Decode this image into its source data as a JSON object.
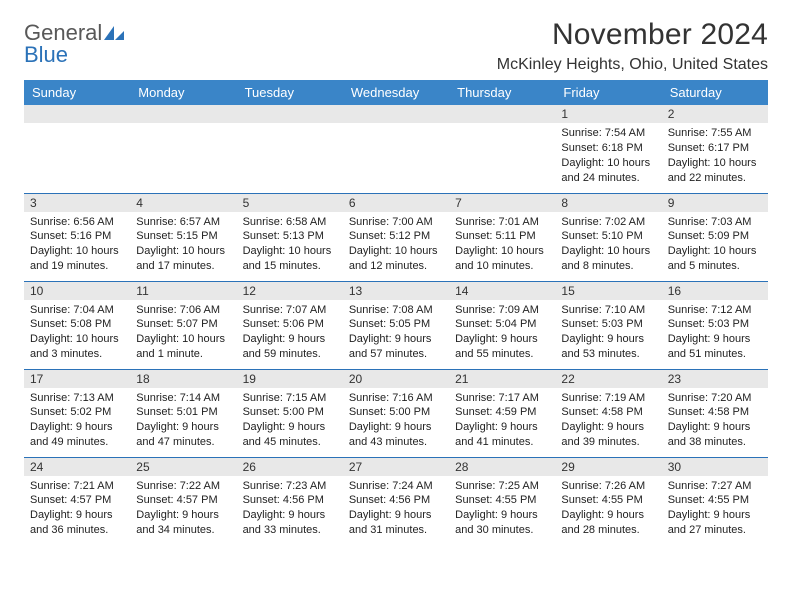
{
  "brand": {
    "name_a": "General",
    "name_b": "Blue"
  },
  "title": "November 2024",
  "subtitle": "McKinley Heights, Ohio, United States",
  "columns": [
    "Sunday",
    "Monday",
    "Tuesday",
    "Wednesday",
    "Thursday",
    "Friday",
    "Saturday"
  ],
  "colors": {
    "header_bg": "#3a85c8",
    "header_fg": "#ffffff",
    "strip_bg": "#e8e8e8",
    "divider": "#2b72b8",
    "logo_grey": "#585858",
    "logo_blue": "#2b72b8"
  },
  "weeks": [
    [
      {
        "n": "",
        "l1": "",
        "l2": "",
        "l3": "",
        "l4": ""
      },
      {
        "n": "",
        "l1": "",
        "l2": "",
        "l3": "",
        "l4": ""
      },
      {
        "n": "",
        "l1": "",
        "l2": "",
        "l3": "",
        "l4": ""
      },
      {
        "n": "",
        "l1": "",
        "l2": "",
        "l3": "",
        "l4": ""
      },
      {
        "n": "",
        "l1": "",
        "l2": "",
        "l3": "",
        "l4": ""
      },
      {
        "n": "1",
        "l1": "Sunrise: 7:54 AM",
        "l2": "Sunset: 6:18 PM",
        "l3": "Daylight: 10 hours",
        "l4": "and 24 minutes."
      },
      {
        "n": "2",
        "l1": "Sunrise: 7:55 AM",
        "l2": "Sunset: 6:17 PM",
        "l3": "Daylight: 10 hours",
        "l4": "and 22 minutes."
      }
    ],
    [
      {
        "n": "3",
        "l1": "Sunrise: 6:56 AM",
        "l2": "Sunset: 5:16 PM",
        "l3": "Daylight: 10 hours",
        "l4": "and 19 minutes."
      },
      {
        "n": "4",
        "l1": "Sunrise: 6:57 AM",
        "l2": "Sunset: 5:15 PM",
        "l3": "Daylight: 10 hours",
        "l4": "and 17 minutes."
      },
      {
        "n": "5",
        "l1": "Sunrise: 6:58 AM",
        "l2": "Sunset: 5:13 PM",
        "l3": "Daylight: 10 hours",
        "l4": "and 15 minutes."
      },
      {
        "n": "6",
        "l1": "Sunrise: 7:00 AM",
        "l2": "Sunset: 5:12 PM",
        "l3": "Daylight: 10 hours",
        "l4": "and 12 minutes."
      },
      {
        "n": "7",
        "l1": "Sunrise: 7:01 AM",
        "l2": "Sunset: 5:11 PM",
        "l3": "Daylight: 10 hours",
        "l4": "and 10 minutes."
      },
      {
        "n": "8",
        "l1": "Sunrise: 7:02 AM",
        "l2": "Sunset: 5:10 PM",
        "l3": "Daylight: 10 hours",
        "l4": "and 8 minutes."
      },
      {
        "n": "9",
        "l1": "Sunrise: 7:03 AM",
        "l2": "Sunset: 5:09 PM",
        "l3": "Daylight: 10 hours",
        "l4": "and 5 minutes."
      }
    ],
    [
      {
        "n": "10",
        "l1": "Sunrise: 7:04 AM",
        "l2": "Sunset: 5:08 PM",
        "l3": "Daylight: 10 hours",
        "l4": "and 3 minutes."
      },
      {
        "n": "11",
        "l1": "Sunrise: 7:06 AM",
        "l2": "Sunset: 5:07 PM",
        "l3": "Daylight: 10 hours",
        "l4": "and 1 minute."
      },
      {
        "n": "12",
        "l1": "Sunrise: 7:07 AM",
        "l2": "Sunset: 5:06 PM",
        "l3": "Daylight: 9 hours",
        "l4": "and 59 minutes."
      },
      {
        "n": "13",
        "l1": "Sunrise: 7:08 AM",
        "l2": "Sunset: 5:05 PM",
        "l3": "Daylight: 9 hours",
        "l4": "and 57 minutes."
      },
      {
        "n": "14",
        "l1": "Sunrise: 7:09 AM",
        "l2": "Sunset: 5:04 PM",
        "l3": "Daylight: 9 hours",
        "l4": "and 55 minutes."
      },
      {
        "n": "15",
        "l1": "Sunrise: 7:10 AM",
        "l2": "Sunset: 5:03 PM",
        "l3": "Daylight: 9 hours",
        "l4": "and 53 minutes."
      },
      {
        "n": "16",
        "l1": "Sunrise: 7:12 AM",
        "l2": "Sunset: 5:03 PM",
        "l3": "Daylight: 9 hours",
        "l4": "and 51 minutes."
      }
    ],
    [
      {
        "n": "17",
        "l1": "Sunrise: 7:13 AM",
        "l2": "Sunset: 5:02 PM",
        "l3": "Daylight: 9 hours",
        "l4": "and 49 minutes."
      },
      {
        "n": "18",
        "l1": "Sunrise: 7:14 AM",
        "l2": "Sunset: 5:01 PM",
        "l3": "Daylight: 9 hours",
        "l4": "and 47 minutes."
      },
      {
        "n": "19",
        "l1": "Sunrise: 7:15 AM",
        "l2": "Sunset: 5:00 PM",
        "l3": "Daylight: 9 hours",
        "l4": "and 45 minutes."
      },
      {
        "n": "20",
        "l1": "Sunrise: 7:16 AM",
        "l2": "Sunset: 5:00 PM",
        "l3": "Daylight: 9 hours",
        "l4": "and 43 minutes."
      },
      {
        "n": "21",
        "l1": "Sunrise: 7:17 AM",
        "l2": "Sunset: 4:59 PM",
        "l3": "Daylight: 9 hours",
        "l4": "and 41 minutes."
      },
      {
        "n": "22",
        "l1": "Sunrise: 7:19 AM",
        "l2": "Sunset: 4:58 PM",
        "l3": "Daylight: 9 hours",
        "l4": "and 39 minutes."
      },
      {
        "n": "23",
        "l1": "Sunrise: 7:20 AM",
        "l2": "Sunset: 4:58 PM",
        "l3": "Daylight: 9 hours",
        "l4": "and 38 minutes."
      }
    ],
    [
      {
        "n": "24",
        "l1": "Sunrise: 7:21 AM",
        "l2": "Sunset: 4:57 PM",
        "l3": "Daylight: 9 hours",
        "l4": "and 36 minutes."
      },
      {
        "n": "25",
        "l1": "Sunrise: 7:22 AM",
        "l2": "Sunset: 4:57 PM",
        "l3": "Daylight: 9 hours",
        "l4": "and 34 minutes."
      },
      {
        "n": "26",
        "l1": "Sunrise: 7:23 AM",
        "l2": "Sunset: 4:56 PM",
        "l3": "Daylight: 9 hours",
        "l4": "and 33 minutes."
      },
      {
        "n": "27",
        "l1": "Sunrise: 7:24 AM",
        "l2": "Sunset: 4:56 PM",
        "l3": "Daylight: 9 hours",
        "l4": "and 31 minutes."
      },
      {
        "n": "28",
        "l1": "Sunrise: 7:25 AM",
        "l2": "Sunset: 4:55 PM",
        "l3": "Daylight: 9 hours",
        "l4": "and 30 minutes."
      },
      {
        "n": "29",
        "l1": "Sunrise: 7:26 AM",
        "l2": "Sunset: 4:55 PM",
        "l3": "Daylight: 9 hours",
        "l4": "and 28 minutes."
      },
      {
        "n": "30",
        "l1": "Sunrise: 7:27 AM",
        "l2": "Sunset: 4:55 PM",
        "l3": "Daylight: 9 hours",
        "l4": "and 27 minutes."
      }
    ]
  ]
}
